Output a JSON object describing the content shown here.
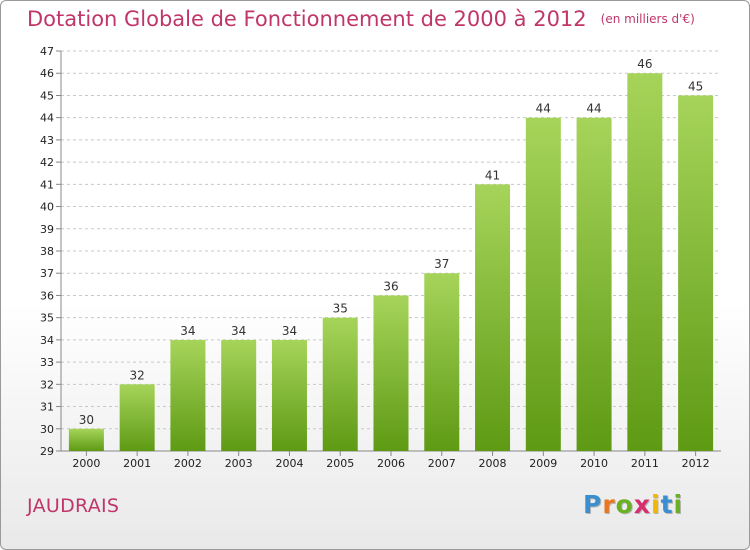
{
  "header": {
    "title": "Dotation Globale de Fonctionnement de 2000 à 2012",
    "unit": "(en milliers d'€)"
  },
  "commune": "JAUDRAIS",
  "logo": {
    "text": "Proxiti",
    "letter_colors": [
      "#3a8fd0",
      "#e87722",
      "#6ab023",
      "#d62f6d",
      "#f2b705",
      "#3a8fd0",
      "#6ab023"
    ]
  },
  "colors": {
    "title": "#c0366a",
    "bar_top": "#a6d45a",
    "bar_bottom": "#5e9a14",
    "grid": "#c8c8c8"
  },
  "chart_data": {
    "type": "bar",
    "title": "Dotation Globale de Fonctionnement de 2000 à 2012",
    "subtitle": "(en milliers d'€)",
    "categories": [
      "2000",
      "2001",
      "2002",
      "2003",
      "2004",
      "2005",
      "2006",
      "2007",
      "2008",
      "2009",
      "2010",
      "2011",
      "2012"
    ],
    "values": [
      30,
      32,
      34,
      34,
      34,
      35,
      36,
      37,
      41,
      44,
      44,
      46,
      45
    ],
    "ylim": [
      29,
      47
    ],
    "yticks": [
      29,
      30,
      31,
      32,
      33,
      34,
      35,
      36,
      37,
      38,
      39,
      40,
      41,
      42,
      43,
      44,
      45,
      46,
      47
    ],
    "grid": "horizontal dashed",
    "data_labels": true
  }
}
